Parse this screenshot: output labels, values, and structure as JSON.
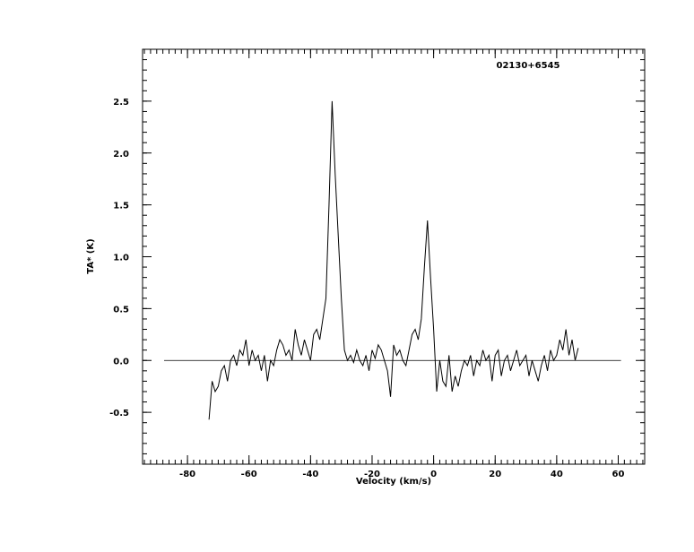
{
  "chart_data": {
    "type": "line",
    "title": "02130+6545",
    "xlabel": "Velocity (km/s)",
    "ylabel": "TA* (K)",
    "xlim": [
      -94.6,
      68.6
    ],
    "ylim": [
      -1,
      3
    ],
    "xticks": [
      -80,
      -60,
      -40,
      -20,
      0,
      20,
      40,
      60
    ],
    "yticks": [
      -0.5,
      {
        "value": 0,
        "label": "0.0"
      },
      0.5,
      {
        "value": 1,
        "label": "1.0"
      },
      1.5,
      {
        "value": 2,
        "label": "2.0"
      },
      2.5
    ],
    "baseline": {
      "y": 0,
      "x": [
        -87.6,
        60.9
      ]
    },
    "color": "#000000",
    "x": [
      -73,
      -72,
      -71,
      -70,
      -69,
      -68,
      -67,
      -66,
      -65,
      -64,
      -63,
      -62,
      -61,
      -60,
      -59,
      -58,
      -57,
      -56,
      -55,
      -54,
      -53,
      -52,
      -51,
      -50,
      -49,
      -48,
      -47,
      -46,
      -45,
      -44,
      -43,
      -42,
      -41,
      -40,
      -39,
      -38,
      -37,
      -36,
      -35,
      -34,
      -33,
      -32,
      -31,
      -30,
      -29,
      -28,
      -27,
      -26,
      -25,
      -24,
      -23,
      -22,
      -21,
      -20,
      -19,
      -18,
      -17,
      -16,
      -15,
      -14,
      -13,
      -12,
      -11,
      -10,
      -9,
      -8,
      -7,
      -6,
      -5,
      -4,
      -3,
      -2,
      -1,
      0,
      1,
      2,
      3,
      4,
      5,
      6,
      7,
      8,
      9,
      10,
      11,
      12,
      13,
      14,
      15,
      16,
      17,
      18,
      19,
      20,
      21,
      22,
      23,
      24,
      25,
      26,
      27,
      28,
      29,
      30,
      31,
      32,
      33,
      34,
      35,
      36,
      37,
      38,
      39,
      40,
      41,
      42,
      43,
      44,
      45,
      46,
      47
    ],
    "values": [
      -0.57,
      -0.2,
      -0.3,
      -0.25,
      -0.1,
      -0.05,
      -0.2,
      0.0,
      0.05,
      -0.05,
      0.1,
      0.05,
      0.2,
      -0.05,
      0.1,
      0.0,
      0.05,
      -0.1,
      0.05,
      -0.2,
      0.0,
      -0.05,
      0.1,
      0.2,
      0.15,
      0.05,
      0.1,
      0.0,
      0.3,
      0.15,
      0.05,
      0.2,
      0.1,
      0.0,
      0.25,
      0.3,
      0.2,
      0.4,
      0.6,
      1.5,
      2.5,
      1.8,
      1.2,
      0.6,
      0.1,
      0.0,
      0.05,
      -0.02,
      0.1,
      0.0,
      -0.05,
      0.05,
      -0.1,
      0.1,
      0.02,
      0.15,
      0.1,
      0.0,
      -0.1,
      -0.35,
      0.15,
      0.05,
      0.1,
      0.0,
      -0.05,
      0.1,
      0.25,
      0.3,
      0.2,
      0.4,
      0.9,
      1.35,
      0.8,
      0.3,
      -0.3,
      0.0,
      -0.2,
      -0.25,
      0.05,
      -0.3,
      -0.15,
      -0.25,
      -0.1,
      0.0,
      -0.05,
      0.05,
      -0.15,
      0.0,
      -0.05,
      0.1,
      0.0,
      0.05,
      -0.2,
      0.05,
      0.1,
      -0.15,
      0.0,
      0.05,
      -0.1,
      0.0,
      0.1,
      -0.05,
      0.0,
      0.05,
      -0.15,
      0.0,
      -0.1,
      -0.2,
      -0.05,
      0.05,
      -0.1,
      0.1,
      0.0,
      0.05,
      0.2,
      0.1,
      0.3,
      0.05,
      0.2,
      0.0,
      0.12
    ]
  }
}
